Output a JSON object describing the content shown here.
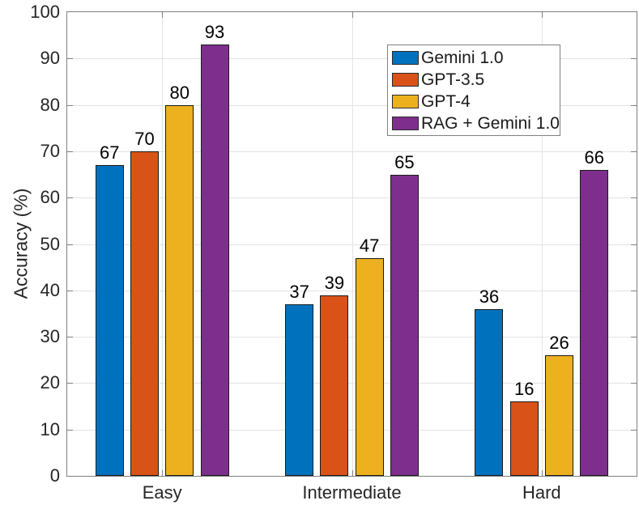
{
  "chart_data": {
    "type": "bar",
    "categories": [
      "Easy",
      "Intermediate",
      "Hard"
    ],
    "series": [
      {
        "name": "Gemini 1.0",
        "color": "#0072BD",
        "values": [
          67,
          37,
          36
        ]
      },
      {
        "name": "GPT-3.5",
        "color": "#D95319",
        "values": [
          70,
          39,
          16
        ]
      },
      {
        "name": "GPT-4",
        "color": "#EDB120",
        "values": [
          80,
          47,
          26
        ]
      },
      {
        "name": "RAG + Gemini 1.0",
        "color": "#7E2F8E",
        "values": [
          93,
          65,
          66
        ]
      }
    ],
    "xlabel": "",
    "ylabel": "Accuracy (%)",
    "ylim": [
      0,
      100
    ],
    "ytick_step": 10,
    "yticks": [
      0,
      10,
      20,
      30,
      40,
      50,
      60,
      70,
      80,
      90,
      100
    ],
    "grid": true,
    "bar_value_labels": true,
    "legend_position": "upper-right-inside",
    "styles": {
      "background": "#ffffff",
      "axis_color": "#808080",
      "grid_color": "#e3e3e3",
      "tick_label_color": "#262626",
      "category_label_color": "#262626",
      "value_label_color": "#000000",
      "bar_edge_color": "#1a1a1a",
      "legend_border_color": "#808080",
      "legend_text_color": "#1a1a1a",
      "legend_swatch_edge_color": "#2b2b2b"
    }
  }
}
